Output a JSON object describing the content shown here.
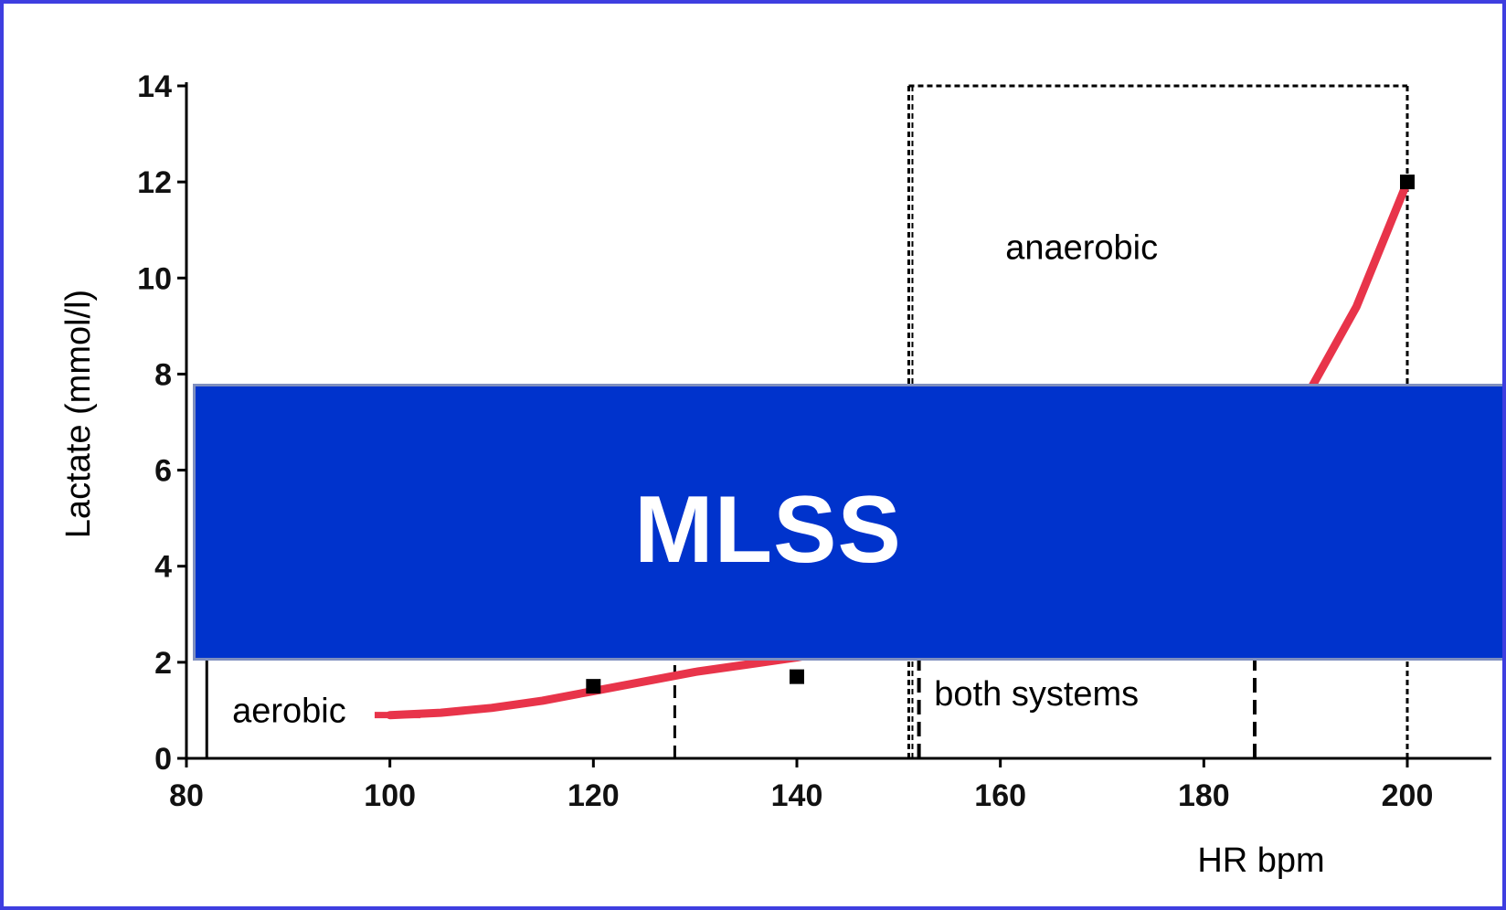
{
  "chart_data": {
    "type": "line",
    "xlabel": "HR bpm",
    "ylabel": "Lactate (mmol/l)",
    "xlim": [
      80,
      210
    ],
    "ylim": [
      0,
      14
    ],
    "x_ticks": [
      "80",
      "100",
      "120",
      "140",
      "160",
      "180",
      "200"
    ],
    "y_ticks": [
      "0",
      "2",
      "4",
      "6",
      "8",
      "10",
      "12",
      "14"
    ],
    "grid": false,
    "curve": {
      "color": "#e8344a",
      "x": [
        100,
        105,
        110,
        115,
        120,
        125,
        130,
        135,
        140,
        145,
        150,
        155,
        160,
        165,
        170,
        175,
        180,
        185,
        190,
        195,
        200
      ],
      "y": [
        0.9,
        0.95,
        1.05,
        1.2,
        1.4,
        1.6,
        1.8,
        1.95,
        2.1,
        2.3,
        2.55,
        2.85,
        3.2,
        3.6,
        4.1,
        4.8,
        5.7,
        6.6,
        7.5,
        9.4,
        12.0
      ]
    },
    "points": [
      {
        "x": 120,
        "y": 1.5
      },
      {
        "x": 140,
        "y": 1.7
      },
      {
        "x": 200,
        "y": 12.0
      }
    ],
    "zones": [
      {
        "label": "aerobic",
        "x": [
          82,
          128
        ],
        "y": [
          0,
          2.3
        ]
      },
      {
        "label": "both systems",
        "x": [
          152,
          185
        ],
        "y": [
          0,
          2.3
        ]
      },
      {
        "label": "anaerobic",
        "x": [
          151,
          200
        ],
        "y": [
          0,
          14
        ]
      }
    ]
  },
  "banner": {
    "label": "MLSS",
    "color": "#0033cc"
  }
}
